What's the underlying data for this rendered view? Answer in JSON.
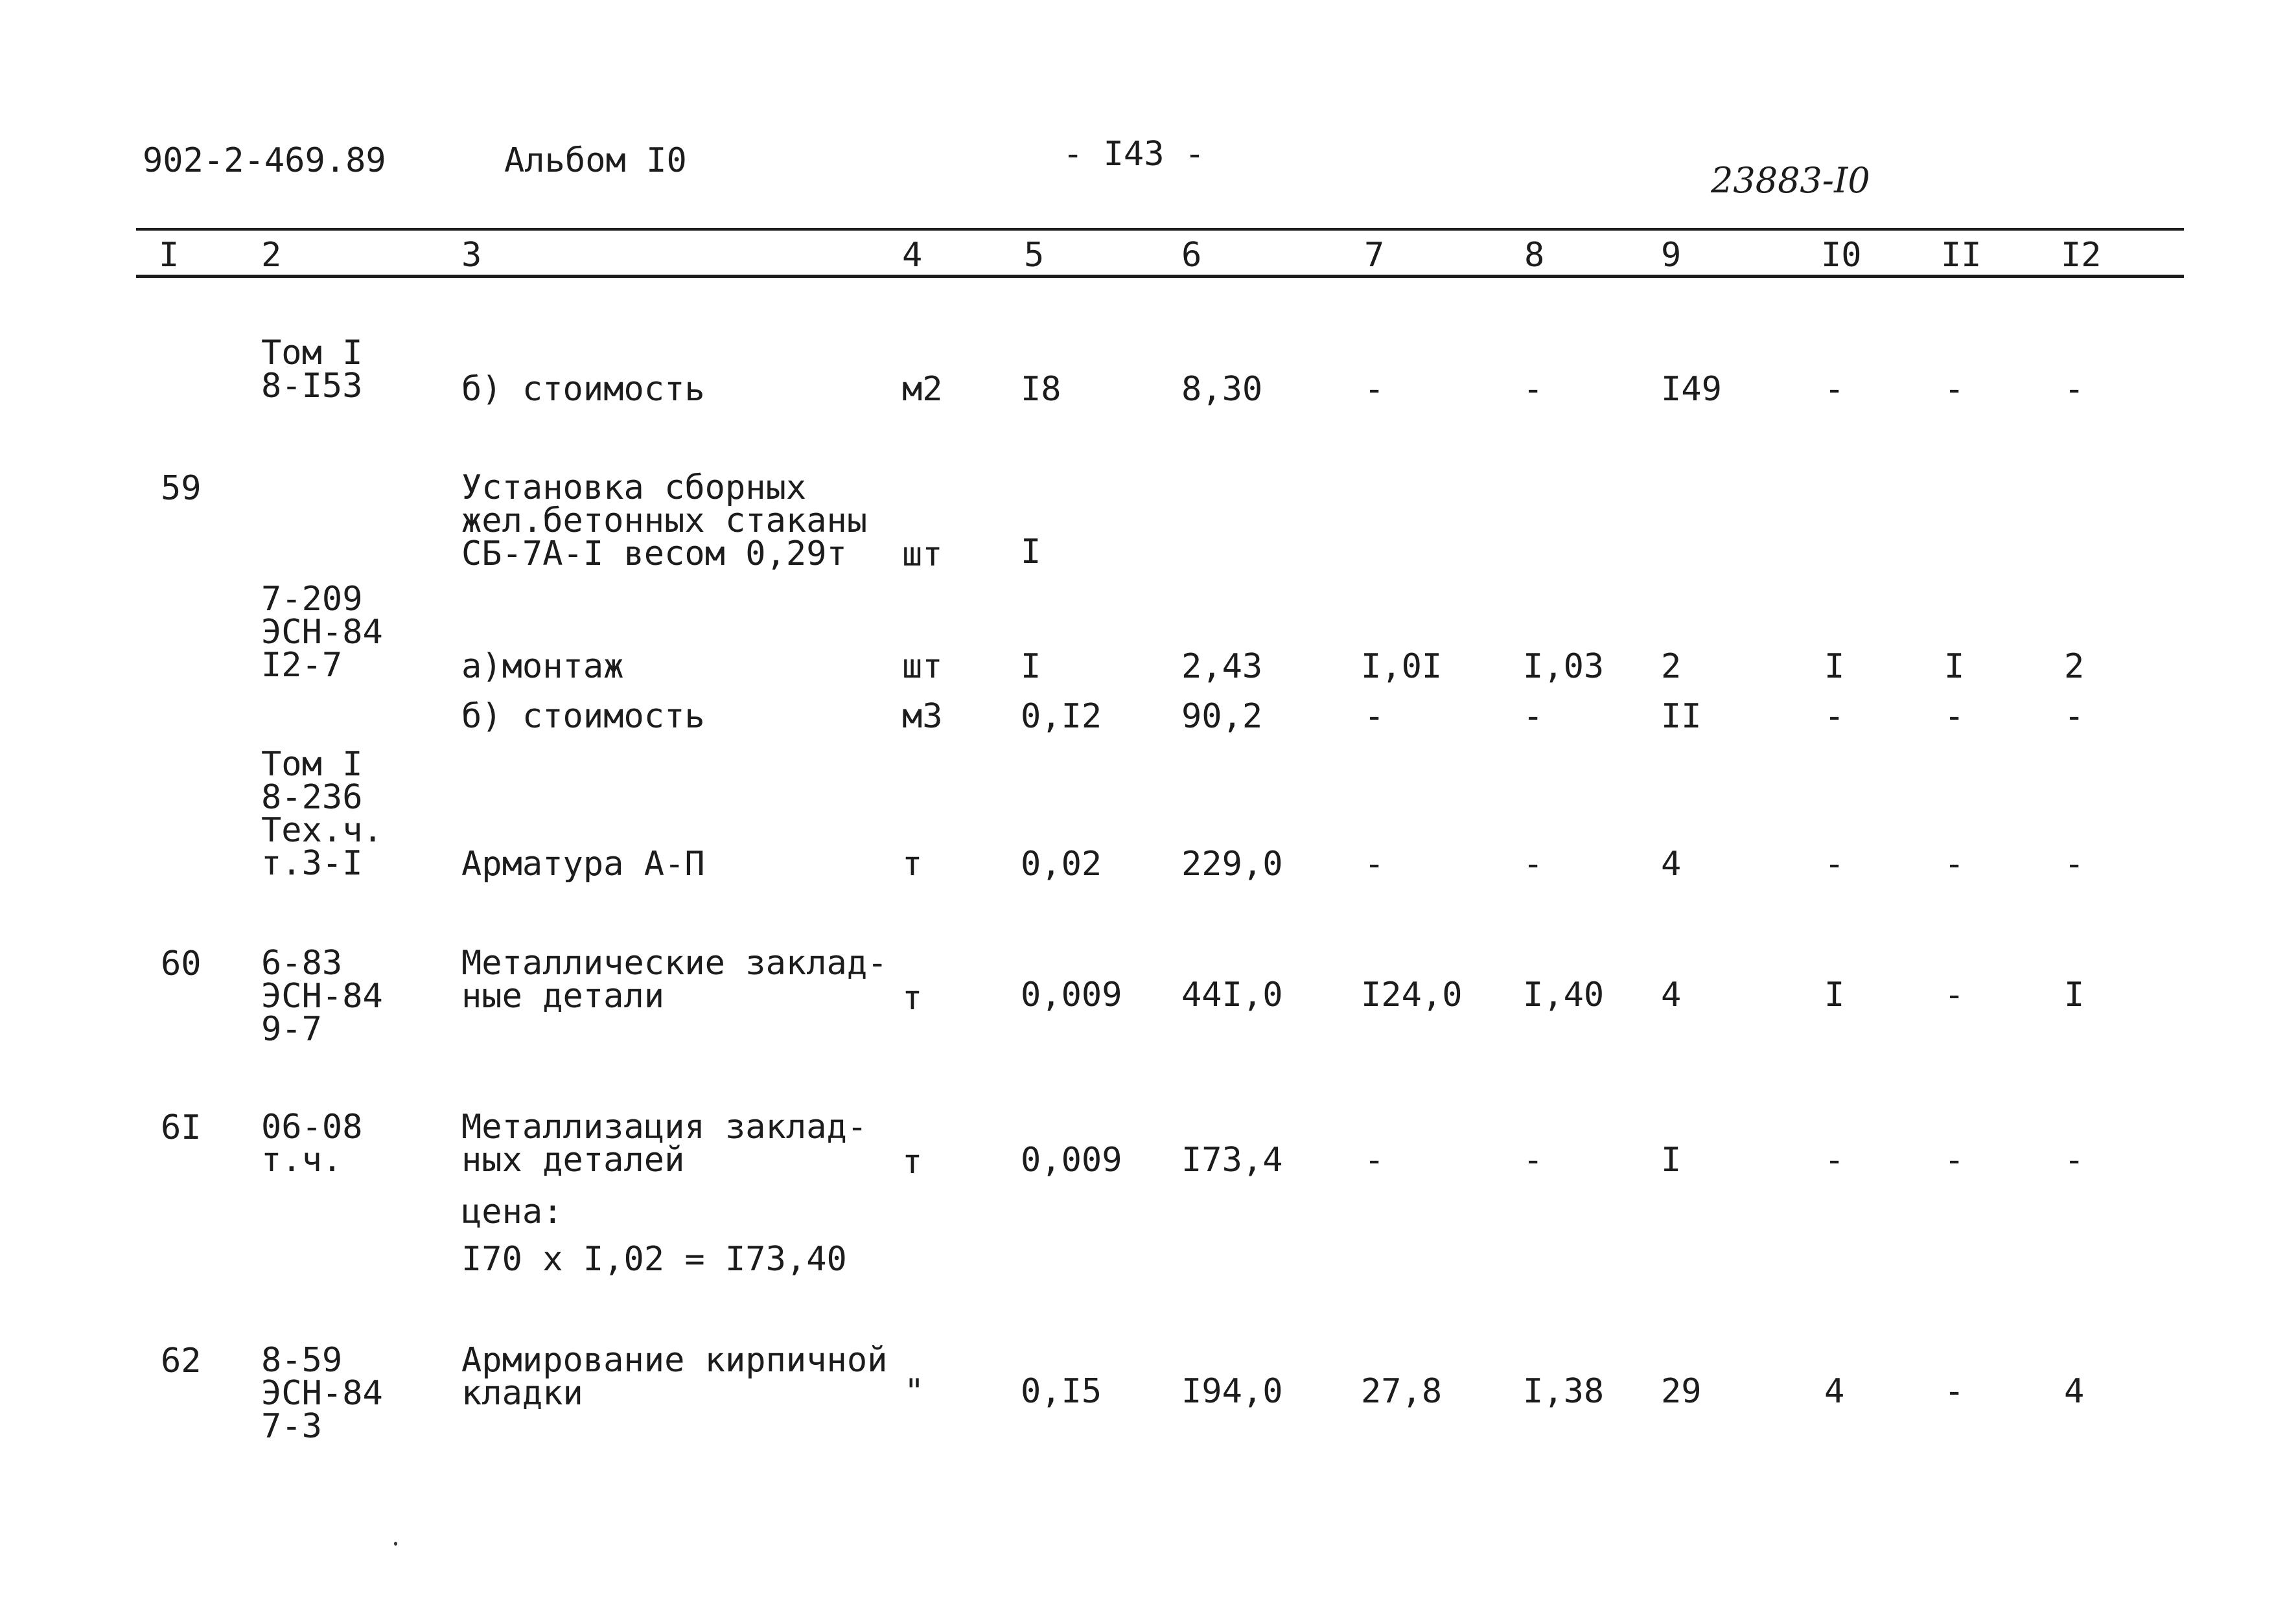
{
  "header": {
    "doc_code": "902-2-469.89",
    "album": "Альбом I0",
    "page_number": "- I43 -",
    "handwritten_number": "23883-I0"
  },
  "columns": [
    "I",
    "2",
    "3",
    "4",
    "5",
    "6",
    "7",
    "8",
    "9",
    "I0",
    "II",
    "I2"
  ],
  "rows": [
    {
      "ref": [
        "Том I",
        "8-I53"
      ],
      "desc": [
        "б) стоимость"
      ],
      "unit": "м2",
      "c5": "I8",
      "c6": "8,30",
      "c7": "-",
      "c8": "-",
      "c9": "I49",
      "c10": "-",
      "c11": "-",
      "c12": "-"
    },
    {
      "num": "59",
      "desc": [
        "Установка сборных",
        "жел.бетонных стаканы",
        "СБ-7А-I весом 0,29т"
      ],
      "unit": "шт",
      "c5": "I"
    },
    {
      "ref": [
        "7-209",
        "ЭСН-84",
        "I2-7"
      ],
      "desc": [
        "а)монтаж"
      ],
      "unit": "шт",
      "c5": "I",
      "c6": "2,43",
      "c7": "I,0I",
      "c8": "I,03",
      "c9": "2",
      "c10": "I",
      "c11": "I",
      "c12": "2"
    },
    {
      "desc": [
        "б) стоимость"
      ],
      "unit": "м3",
      "c5": "0,I2",
      "c6": "90,2",
      "c7": "-",
      "c8": "-",
      "c9": "II",
      "c10": "-",
      "c11": "-",
      "c12": "-"
    },
    {
      "ref": [
        "Том I",
        "8-236",
        "Тех.ч.",
        "т.3-I"
      ],
      "desc": [
        "Арматура А-П"
      ],
      "unit": "т",
      "c5": "0,02",
      "c6": "229,0",
      "c7": "-",
      "c8": "-",
      "c9": "4",
      "c10": "-",
      "c11": "-",
      "c12": "-"
    },
    {
      "num": "60",
      "ref": [
        "6-83",
        "ЭСН-84",
        "9-7"
      ],
      "desc": [
        "Металлические заклад-",
        "ные детали"
      ],
      "unit": "т",
      "c5": "0,009",
      "c6": "44I,0",
      "c7": "I24,0",
      "c8": "I,40",
      "c9": "4",
      "c10": "I",
      "c11": "-",
      "c12": "I"
    },
    {
      "num": "6I",
      "ref": [
        "06-08",
        "т.ч."
      ],
      "desc": [
        "Металлизация заклад-",
        "ных деталей"
      ],
      "unit": "т",
      "c5": "0,009",
      "c6": "I73,4",
      "c7": "-",
      "c8": "-",
      "c9": "I",
      "c10": "-",
      "c11": "-",
      "c12": "-",
      "note": [
        "цена:",
        "I70 x I,02 = I73,40"
      ]
    },
    {
      "num": "62",
      "ref": [
        "8-59",
        "ЭСН-84",
        "7-3"
      ],
      "desc": [
        "Армирование кирпичной",
        "кладки"
      ],
      "unit": "\"",
      "c5": "0,I5",
      "c6": "I94,0",
      "c7": "27,8",
      "c8": "I,38",
      "c9": "29",
      "c10": "4",
      "c11": "-",
      "c12": "4"
    }
  ]
}
